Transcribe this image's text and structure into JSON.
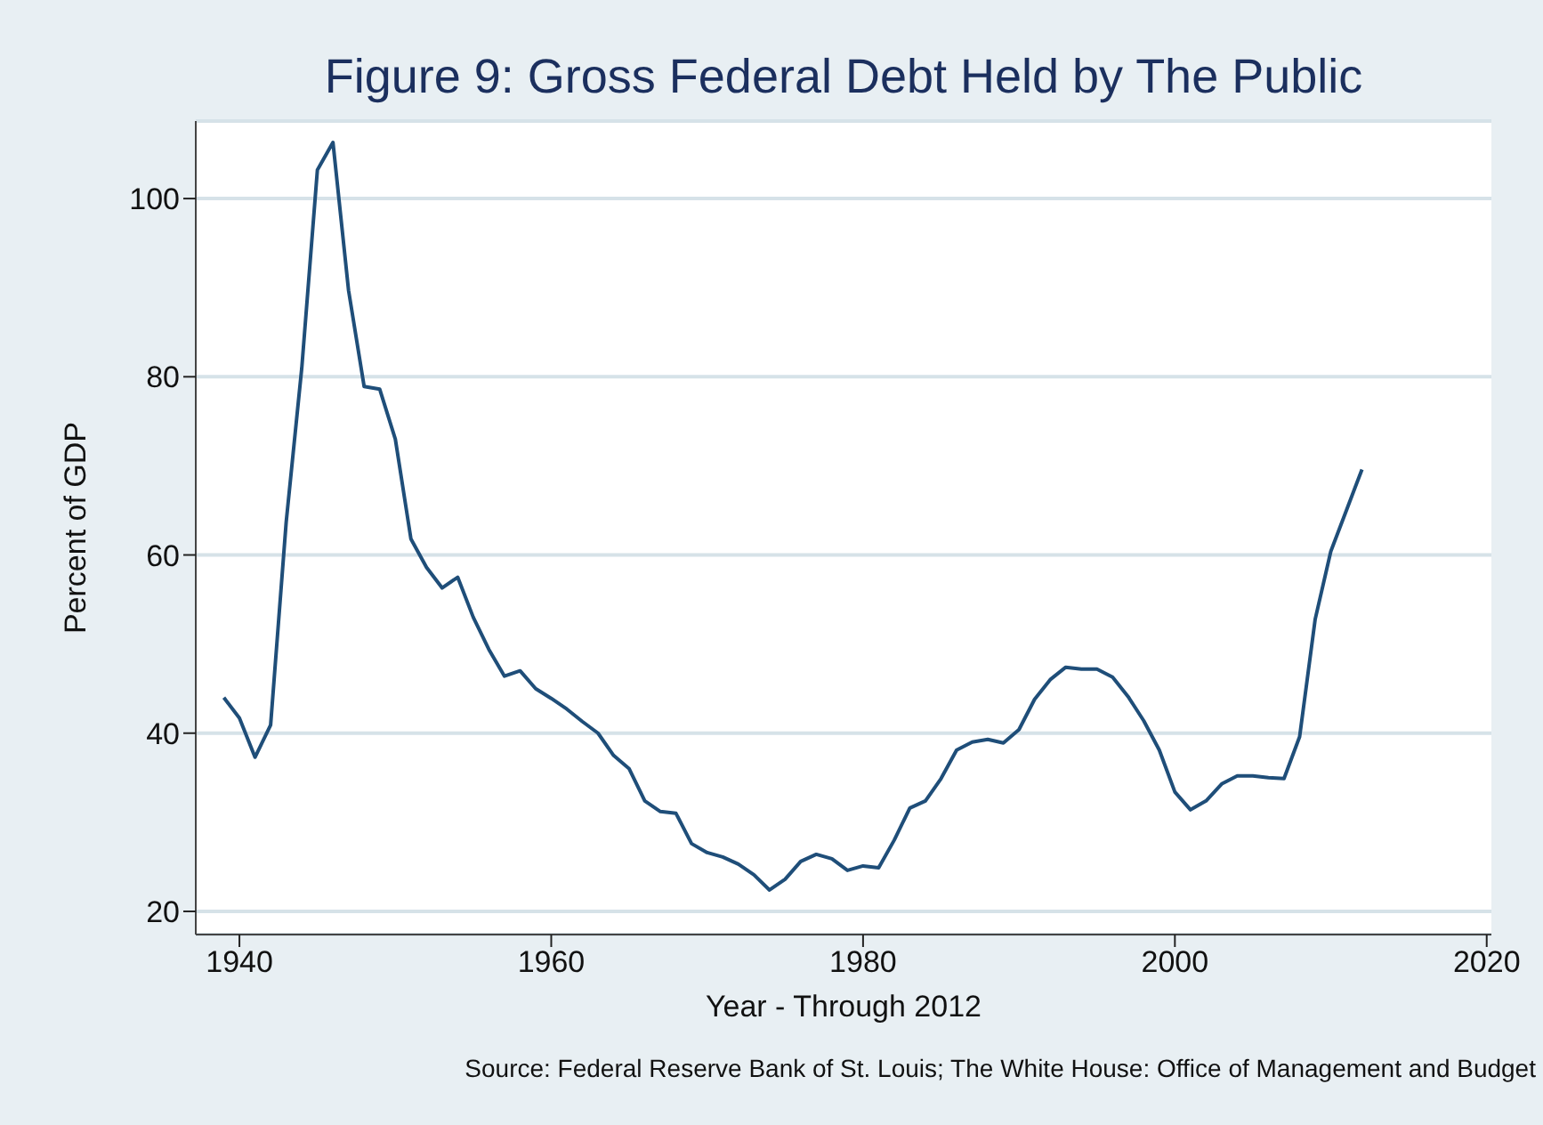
{
  "chart_data": {
    "type": "line",
    "title": "Figure 9: Gross Federal Debt Held by The Public",
    "xlabel": "Year - Through 2012",
    "ylabel": "Percent of GDP",
    "annotations": [
      "Source: Federal Reserve Bank of St. Louis; The White House: Office of Management and Budget"
    ],
    "x": [
      1939,
      1940,
      1941,
      1942,
      1943,
      1944,
      1945,
      1946,
      1947,
      1948,
      1949,
      1950,
      1951,
      1952,
      1953,
      1954,
      1955,
      1956,
      1957,
      1958,
      1959,
      1960,
      1961,
      1962,
      1963,
      1964,
      1965,
      1966,
      1967,
      1968,
      1969,
      1970,
      1971,
      1972,
      1973,
      1974,
      1975,
      1976,
      1977,
      1978,
      1979,
      1980,
      1981,
      1982,
      1983,
      1984,
      1985,
      1986,
      1987,
      1988,
      1989,
      1990,
      1991,
      1992,
      1993,
      1994,
      1995,
      1996,
      1997,
      1998,
      1999,
      2000,
      2001,
      2002,
      2003,
      2004,
      2005,
      2006,
      2007,
      2008,
      2009,
      2010,
      2011,
      2012
    ],
    "series": [
      {
        "color": "#1f4e79",
        "values": [
          44,
          41.7,
          37.3,
          40.9,
          63.7,
          81,
          103.2,
          106.3,
          89.7,
          78.9,
          78.6,
          73,
          61.8,
          58.6,
          56.3,
          57.5,
          53,
          49.4,
          46.4,
          47,
          45,
          43.9,
          42.7,
          41.3,
          40,
          37.5,
          36,
          32.4,
          31.2,
          31,
          27.6,
          26.6,
          26.1,
          25.3,
          24.1,
          22.4,
          23.6,
          25.6,
          26.4,
          25.9,
          24.6,
          25.1,
          24.9,
          28,
          31.6,
          32.4,
          34.9,
          38.1,
          39,
          39.3,
          38.9,
          40.4,
          43.8,
          46,
          47.4,
          47.2,
          47.2,
          46.3,
          44.1,
          41.4,
          38.1,
          33.4,
          31.4,
          32.4,
          34.3,
          35.2,
          35.2,
          35,
          34.9,
          39.6,
          52.8,
          60.4,
          65,
          69.6
        ]
      }
    ],
    "xlim": [
      1937.2,
      2020.3
    ],
    "xticks": [
      1940,
      1960,
      1980,
      2000,
      2020
    ],
    "ylim": [
      17.4,
      108.7
    ],
    "yticks": [
      20,
      40,
      60,
      80,
      100
    ],
    "grid": "y",
    "legend": false,
    "marker": "none",
    "line_style": "solid"
  }
}
